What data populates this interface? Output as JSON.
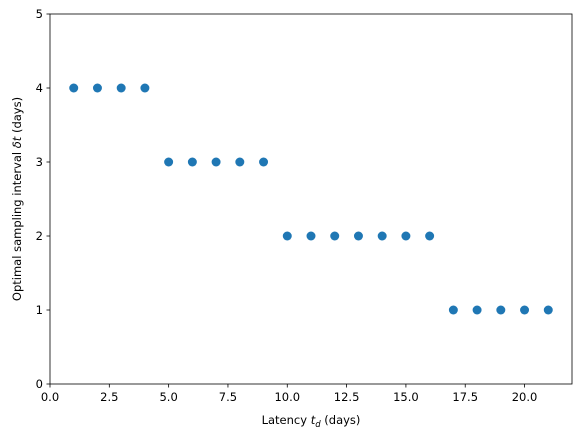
{
  "chart_data": {
    "type": "scatter",
    "title": "",
    "xlabel": "Latency t_d (days)",
    "xlabel_parts": {
      "prefix": "Latency ",
      "var": "t",
      "sub": "d",
      "suffix": " (days)"
    },
    "ylabel": "Optimal sampling interval δt (days)",
    "ylabel_parts": {
      "prefix": "Optimal sampling interval ",
      "var": "δt",
      "suffix": " (days)"
    },
    "xlim": [
      0,
      22
    ],
    "ylim": [
      0,
      5
    ],
    "xticks": [
      0,
      2.5,
      5,
      7.5,
      10,
      12.5,
      15,
      17.5,
      20
    ],
    "xtick_labels": [
      "0.0",
      "2.5",
      "5.0",
      "7.5",
      "10.0",
      "12.5",
      "15.0",
      "17.5",
      "20.0"
    ],
    "yticks": [
      0,
      1,
      2,
      3,
      4,
      5
    ],
    "ytick_labels": [
      "0",
      "1",
      "2",
      "3",
      "4",
      "5"
    ],
    "grid": false,
    "color": "#1f77b4",
    "series": [
      {
        "x": [
          1,
          2,
          3,
          4,
          5,
          6,
          7,
          8,
          9,
          10,
          11,
          12,
          13,
          14,
          15,
          16,
          17,
          18,
          19,
          20,
          21
        ],
        "y": [
          4,
          4,
          4,
          4,
          3,
          3,
          3,
          3,
          3,
          2,
          2,
          2,
          2,
          2,
          2,
          2,
          1,
          1,
          1,
          1,
          1
        ]
      }
    ]
  }
}
